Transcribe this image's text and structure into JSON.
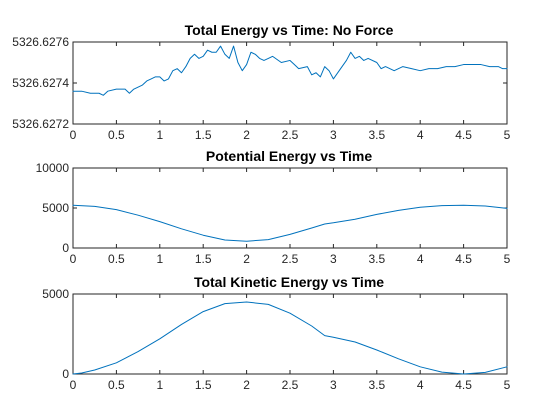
{
  "chart_data": [
    {
      "type": "line",
      "title": "Total Energy vs Time: No Force",
      "xlabel": "",
      "ylabel": "",
      "xlim": [
        0,
        5
      ],
      "ylim": [
        5326.6272,
        5326.6276
      ],
      "xticks": [
        "0",
        "0.5",
        "1",
        "1.5",
        "2",
        "2.5",
        "3",
        "3.5",
        "4",
        "4.5",
        "5"
      ],
      "yticks": [
        "5326.6272",
        "5326.6274",
        "5326.6276"
      ],
      "grid": false,
      "color": "#0072bd",
      "series": [
        {
          "x": [
            0,
            0.1,
            0.2,
            0.3,
            0.35,
            0.4,
            0.5,
            0.6,
            0.65,
            0.7,
            0.8,
            0.85,
            0.9,
            0.95,
            1.0,
            1.05,
            1.1,
            1.15,
            1.2,
            1.25,
            1.3,
            1.35,
            1.4,
            1.45,
            1.5,
            1.55,
            1.6,
            1.65,
            1.7,
            1.75,
            1.8,
            1.85,
            1.9,
            1.95,
            2.0,
            2.05,
            2.1,
            2.15,
            2.2,
            2.25,
            2.3,
            2.4,
            2.5,
            2.55,
            2.6,
            2.7,
            2.75,
            2.8,
            2.85,
            2.9,
            2.95,
            3.0,
            3.1,
            3.15,
            3.2,
            3.25,
            3.3,
            3.35,
            3.4,
            3.5,
            3.55,
            3.6,
            3.7,
            3.8,
            3.9,
            4.0,
            4.1,
            4.2,
            4.3,
            4.4,
            4.5,
            4.6,
            4.7,
            4.8,
            4.9,
            4.95,
            5.0
          ],
          "y": [
            5326.62736,
            5326.62736,
            5326.62735,
            5326.62735,
            5326.62734,
            5326.62736,
            5326.62737,
            5326.62737,
            5326.62735,
            5326.62737,
            5326.62739,
            5326.62741,
            5326.62742,
            5326.62743,
            5326.62743,
            5326.62741,
            5326.62742,
            5326.62746,
            5326.62747,
            5326.62745,
            5326.62748,
            5326.62752,
            5326.62754,
            5326.62752,
            5326.62753,
            5326.62756,
            5326.62755,
            5326.62755,
            5326.62758,
            5326.62754,
            5326.62752,
            5326.62758,
            5326.6275,
            5326.62746,
            5326.62749,
            5326.62755,
            5326.62754,
            5326.62752,
            5326.62751,
            5326.62752,
            5326.62753,
            5326.6275,
            5326.62751,
            5326.62749,
            5326.62747,
            5326.62748,
            5326.62744,
            5326.62745,
            5326.62743,
            5326.62748,
            5326.62746,
            5326.62742,
            5326.62748,
            5326.62751,
            5326.62755,
            5326.62752,
            5326.62753,
            5326.62751,
            5326.62752,
            5326.6275,
            5326.62747,
            5326.62748,
            5326.62746,
            5326.62748,
            5326.62747,
            5326.62746,
            5326.62747,
            5326.62747,
            5326.62748,
            5326.62748,
            5326.62749,
            5326.62749,
            5326.62749,
            5326.62748,
            5326.62748,
            5326.62747,
            5326.62747
          ]
        }
      ]
    },
    {
      "type": "line",
      "title": "Potential Energy vs Time",
      "xlabel": "",
      "ylabel": "",
      "xlim": [
        0,
        5
      ],
      "ylim": [
        0,
        10000
      ],
      "xticks": [
        "0",
        "0.5",
        "1",
        "1.5",
        "2",
        "2.5",
        "3",
        "3.5",
        "4",
        "4.5",
        "5"
      ],
      "yticks": [
        "0",
        "5000",
        "10000"
      ],
      "grid": false,
      "color": "#0072bd",
      "series": [
        {
          "x": [
            0,
            0.25,
            0.5,
            0.75,
            1.0,
            1.25,
            1.5,
            1.75,
            2.0,
            2.25,
            2.5,
            2.75,
            2.9,
            3.0,
            3.25,
            3.5,
            3.75,
            4.0,
            4.25,
            4.5,
            4.75,
            5.0
          ],
          "y": [
            5350,
            5200,
            4800,
            4100,
            3300,
            2400,
            1600,
            1000,
            850,
            1050,
            1700,
            2500,
            3000,
            3150,
            3600,
            4200,
            4700,
            5100,
            5300,
            5350,
            5250,
            4950
          ]
        }
      ]
    },
    {
      "type": "line",
      "title": "Total Kinetic Energy vs Time",
      "xlabel": "",
      "ylabel": "",
      "xlim": [
        0,
        5
      ],
      "ylim": [
        0,
        5000
      ],
      "xticks": [
        "0",
        "0.5",
        "1",
        "1.5",
        "2",
        "2.5",
        "3",
        "3.5",
        "4",
        "4.5",
        "5"
      ],
      "yticks": [
        "0",
        "5000"
      ],
      "grid": false,
      "color": "#0072bd",
      "series": [
        {
          "x": [
            0,
            0.1,
            0.25,
            0.5,
            0.75,
            1.0,
            1.25,
            1.5,
            1.75,
            2.0,
            2.25,
            2.5,
            2.75,
            2.9,
            3.0,
            3.25,
            3.5,
            3.75,
            4.0,
            4.25,
            4.5,
            4.75,
            5.0
          ],
          "y": [
            0,
            60,
            250,
            700,
            1400,
            2200,
            3100,
            3900,
            4400,
            4500,
            4350,
            3800,
            3000,
            2400,
            2300,
            2000,
            1500,
            950,
            450,
            120,
            0,
            100,
            450
          ]
        }
      ]
    }
  ]
}
